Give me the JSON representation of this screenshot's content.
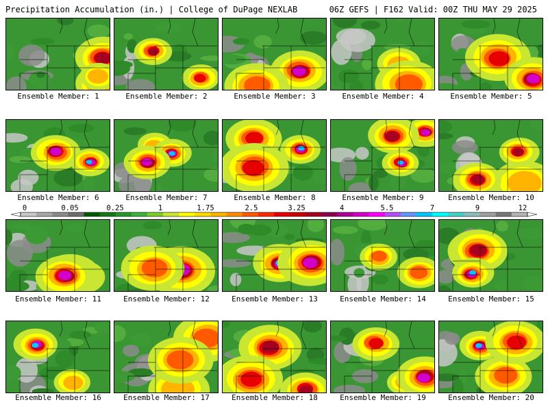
{
  "header": {
    "title_left": "Precipitation Accumulation (in.) | College of DuPage NEXLAB",
    "title_right": "06Z GEFS | F162 Valid: 00Z THU MAY 29 2025"
  },
  "colorbar": {
    "tick_labels": [
      "0",
      "0.05",
      "0.25",
      "1",
      "1.75",
      "2.5",
      "3.25",
      "4",
      "5.5",
      "7",
      "9",
      "12"
    ],
    "colors": [
      "#c8c8c8",
      "#a8a8a8",
      "#8c8c8c",
      "#6e6e6e",
      "#005a00",
      "#147814",
      "#289628",
      "#3cb43c",
      "#7ccc2c",
      "#c8e632",
      "#ffff00",
      "#ffdc00",
      "#ffb400",
      "#ff8c00",
      "#ff5a00",
      "#ff2800",
      "#e60000",
      "#c80000",
      "#a50020",
      "#8c0050",
      "#aa0096",
      "#d200c8",
      "#ff00ff",
      "#b450ff",
      "#6496ff",
      "#00c8ff",
      "#00ffff",
      "#46d2c8",
      "#8cbebe",
      "#a0a0a0",
      "#787878",
      "#b4b4b4"
    ]
  },
  "panels": [
    {
      "label": "Ensemble Member: 1"
    },
    {
      "label": "Ensemble Member: 2"
    },
    {
      "label": "Ensemble Member: 3"
    },
    {
      "label": "Ensemble Member: 4"
    },
    {
      "label": "Ensemble Member: 5"
    },
    {
      "label": "Ensemble Member: 6"
    },
    {
      "label": "Ensemble Member: 7"
    },
    {
      "label": "Ensemble Member: 8"
    },
    {
      "label": "Ensemble Member: 9"
    },
    {
      "label": "Ensemble Member: 10"
    },
    {
      "label": "Ensemble Member: 11"
    },
    {
      "label": "Ensemble Member: 12"
    },
    {
      "label": "Ensemble Member: 13"
    },
    {
      "label": "Ensemble Member: 14"
    },
    {
      "label": "Ensemble Member: 15"
    },
    {
      "label": "Ensemble Member: 16"
    },
    {
      "label": "Ensemble Member: 17"
    },
    {
      "label": "Ensemble Member: 18"
    },
    {
      "label": "Ensemble Member: 19"
    },
    {
      "label": "Ensemble Member: 20"
    }
  ]
}
